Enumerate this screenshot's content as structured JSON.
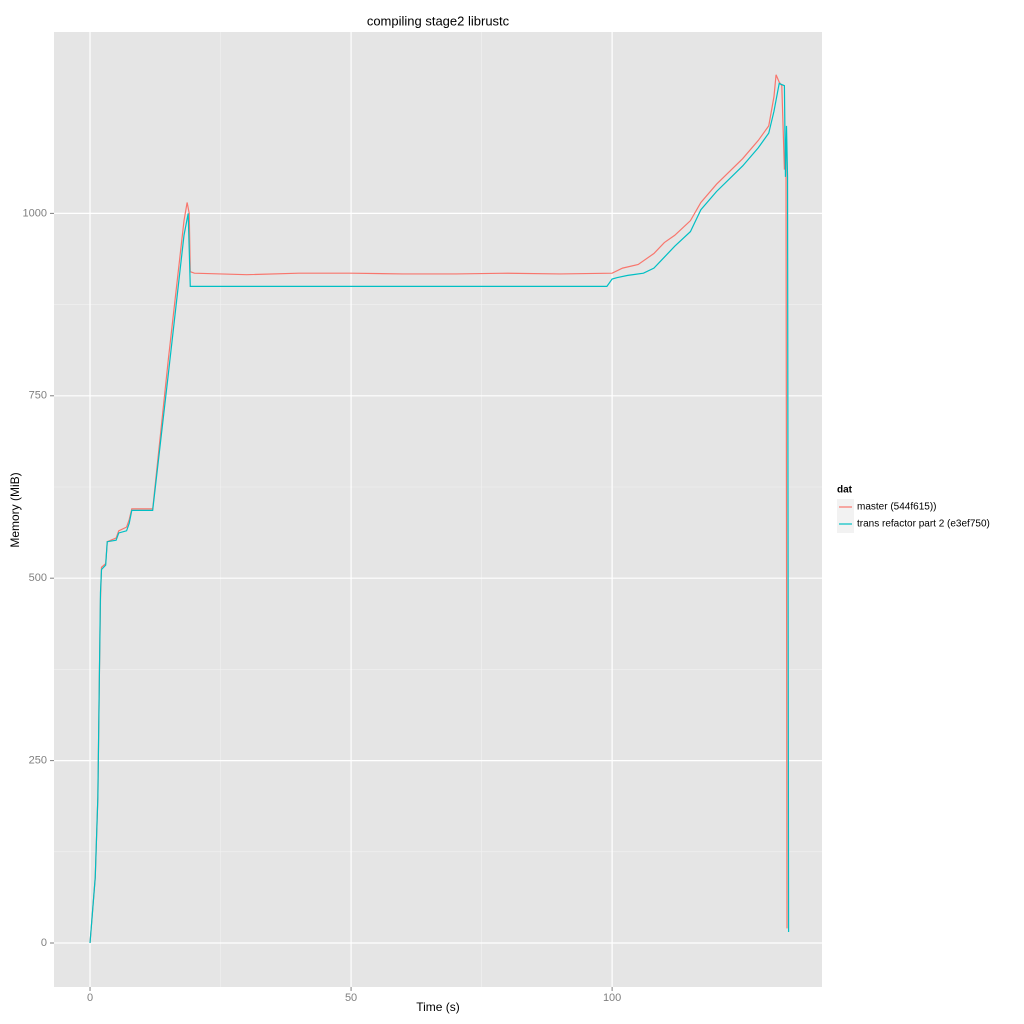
{
  "chart_data": {
    "type": "line",
    "title": "compiling stage2 librustc",
    "x_label": "Time (s)",
    "y_label": "Memory (MiB)",
    "legend_title": "dat",
    "legend_position": "right",
    "xlim": [
      -6.9,
      140.2
    ],
    "ylim": [
      -60.3,
      1248.6
    ],
    "xticks": [
      0,
      50,
      100
    ],
    "yticks": [
      0,
      250,
      500,
      750,
      1000
    ],
    "grid": true,
    "series": [
      {
        "name": "master (544f615))",
        "color": "#F8766D",
        "x": [
          0,
          1,
          1.5,
          1.8,
          2,
          2.2,
          3,
          3.3,
          5,
          5.5,
          7,
          7.5,
          8,
          12,
          15,
          18,
          18.6,
          19,
          19.2,
          20,
          30,
          40,
          50,
          60,
          70,
          80,
          90,
          100,
          102,
          105,
          108,
          110,
          112,
          115,
          117,
          120,
          125,
          128,
          130,
          131,
          131.4,
          132,
          132.5,
          133,
          133.3,
          133.5
        ],
        "values": [
          0,
          90,
          200,
          370,
          470,
          515,
          520,
          550,
          555,
          565,
          570,
          580,
          595,
          595,
          800,
          990,
          1015,
          1000,
          920,
          918,
          916,
          918,
          918,
          917,
          917,
          918,
          917,
          918,
          925,
          930,
          945,
          960,
          970,
          990,
          1015,
          1040,
          1075,
          1100,
          1120,
          1160,
          1190,
          1180,
          1175,
          1060,
          1100,
          20
        ]
      },
      {
        "name": "trans refactor part 2 (e3ef750)",
        "color": "#00BFC4",
        "x": [
          0,
          1,
          1.5,
          1.8,
          2,
          2.2,
          3,
          3.3,
          5,
          5.5,
          7,
          7.5,
          8,
          12,
          15,
          18,
          18.8,
          19.2,
          30,
          50,
          70,
          99,
          100,
          101,
          103,
          106,
          108,
          110,
          112,
          115,
          117,
          120,
          125,
          128,
          130,
          131,
          132,
          133,
          133.2,
          133.4,
          133.6,
          133.8
        ],
        "values": [
          0,
          90,
          200,
          370,
          480,
          512,
          518,
          550,
          552,
          562,
          565,
          575,
          593,
          593,
          780,
          970,
          1000,
          900,
          900,
          900,
          900,
          900,
          910,
          912,
          915,
          918,
          925,
          940,
          955,
          975,
          1005,
          1030,
          1065,
          1090,
          1110,
          1140,
          1178,
          1175,
          1050,
          1120,
          1050,
          15
        ]
      }
    ]
  }
}
